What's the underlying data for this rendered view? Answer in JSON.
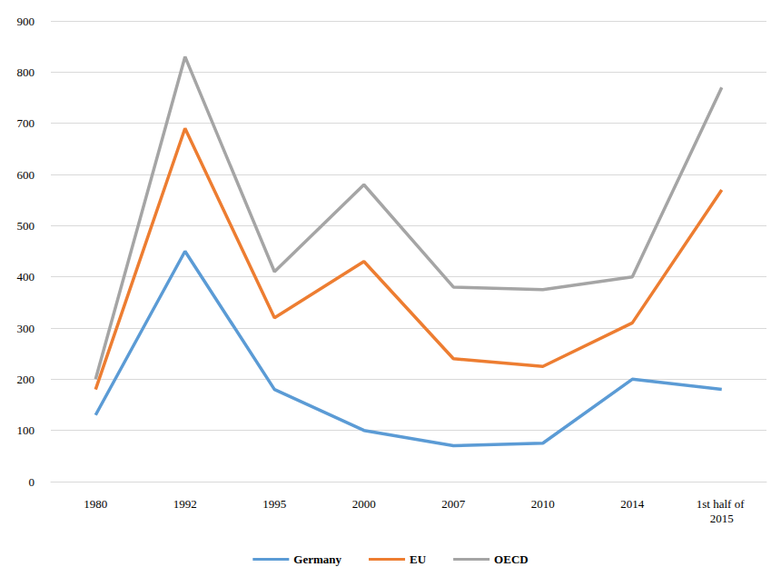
{
  "chart_data": {
    "type": "line",
    "categories": [
      "1980",
      "1992",
      "1995",
      "2000",
      "2007",
      "2010",
      "2014",
      "1st half of 2015"
    ],
    "series": [
      {
        "name": "Germany",
        "color": "#5b9bd5",
        "values": [
          130,
          450,
          180,
          100,
          70,
          75,
          200,
          180
        ]
      },
      {
        "name": "EU",
        "color": "#ed7d31",
        "values": [
          180,
          690,
          320,
          430,
          240,
          225,
          310,
          570
        ]
      },
      {
        "name": "OECD",
        "color": "#a5a5a5",
        "values": [
          200,
          830,
          410,
          580,
          380,
          375,
          400,
          770
        ]
      }
    ],
    "ylim": [
      0,
      900
    ],
    "yticks": [
      0,
      100,
      200,
      300,
      400,
      500,
      600,
      700,
      800,
      900
    ],
    "grid": true,
    "legend": "bottom"
  }
}
